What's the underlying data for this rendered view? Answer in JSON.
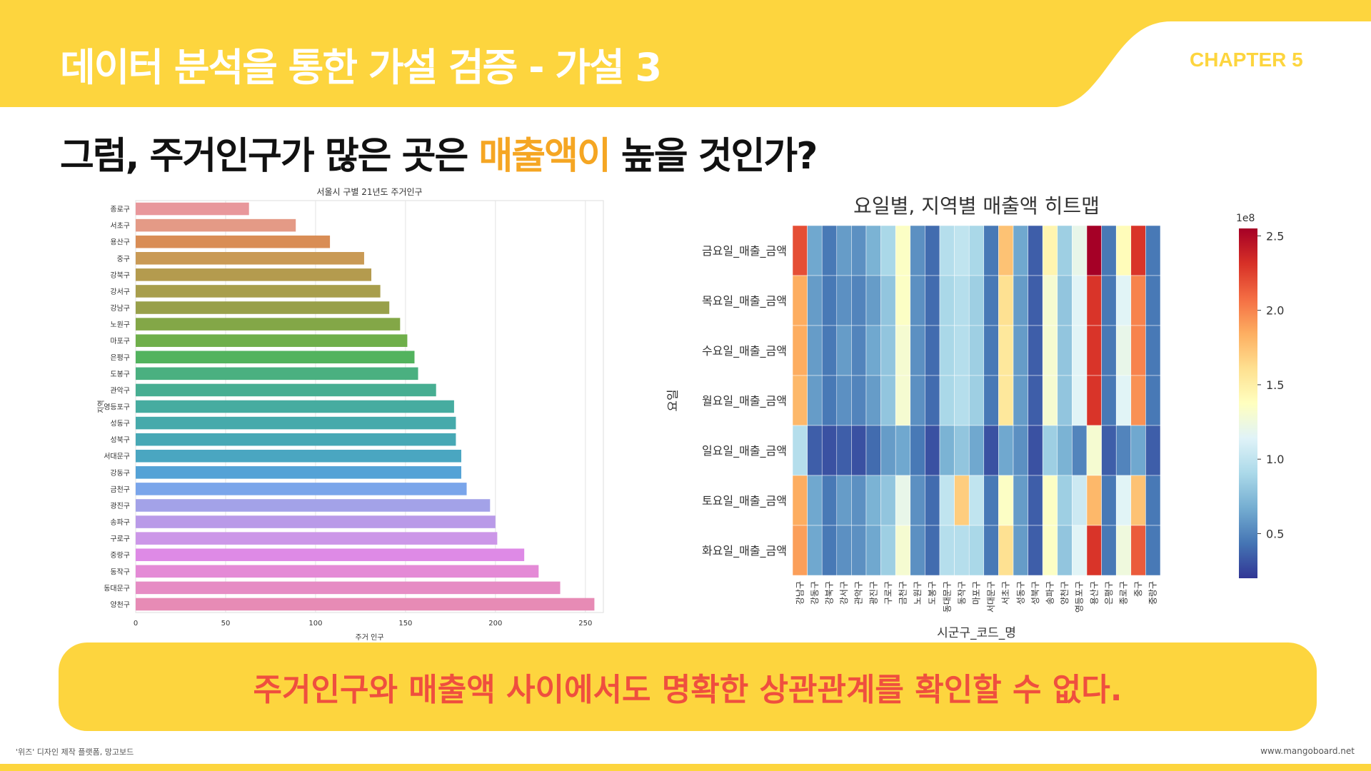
{
  "header": {
    "title": "데이터 분석을 통한 가설 검증 - 가설 3",
    "chapter": "CHAPTER 5",
    "bg_color": "#FDD53E"
  },
  "question": {
    "before": "그럼, 주거인구가 많은 곳은 ",
    "highlight": "매출액이",
    "after": " 높을 것인가?",
    "highlight_color": "#F5A623"
  },
  "conclusion": {
    "text": "주거인구와 매출액 사이에서도 명확한 상관관계를 확인할 수 없다.",
    "text_color": "#EF4F3E"
  },
  "footer": {
    "left": "'위즈' 디자인 제작 플랫폼, 망고보드",
    "right": "www.mangoboard.net"
  },
  "chart_data": [
    {
      "type": "bar",
      "orientation": "horizontal",
      "title": "서울시 구별 21년도 주거인구",
      "xlabel": "주거 인구",
      "ylabel": "지역",
      "xlim": [
        0,
        260
      ],
      "xticks": [
        0,
        50,
        100,
        150,
        200,
        250
      ],
      "grid": true,
      "categories": [
        "종로구",
        "서초구",
        "용산구",
        "중구",
        "강북구",
        "강서구",
        "강남구",
        "노원구",
        "마포구",
        "은평구",
        "도봉구",
        "관악구",
        "영등포구",
        "성동구",
        "성북구",
        "서대문구",
        "강동구",
        "금천구",
        "광진구",
        "송파구",
        "구로구",
        "중랑구",
        "동작구",
        "동대문구",
        "양천구"
      ],
      "values": [
        63,
        89,
        108,
        127,
        131,
        136,
        141,
        147,
        151,
        155,
        157,
        167,
        177,
        178,
        178,
        181,
        181,
        184,
        197,
        200,
        201,
        216,
        224,
        236,
        255
      ]
    },
    {
      "type": "heatmap",
      "title": "요일별, 지역별 매출액 히트맵",
      "xlabel": "시군구_코드_명",
      "ylabel": "요일",
      "colormap": "RdYlBu_r",
      "colorbar": {
        "min": 0.2,
        "max": 2.55,
        "ticks": [
          0.5,
          1.0,
          1.5,
          2.0,
          2.5
        ],
        "multiplier": "1e8"
      },
      "rows": [
        "금요일_매출_금액",
        "목요일_매출_금액",
        "수요일_매출_금액",
        "월요일_매출_금액",
        "일요일_매출_금액",
        "토요일_매출_금액",
        "화요일_매출_금액"
      ],
      "columns": [
        "강남구",
        "강동구",
        "강북구",
        "강서구",
        "관악구",
        "광진구",
        "구로구",
        "금천구",
        "노원구",
        "도봉구",
        "동대문구",
        "동작구",
        "마포구",
        "서대문구",
        "서초구",
        "성동구",
        "성북구",
        "송파구",
        "양천구",
        "영등포구",
        "용산구",
        "은평구",
        "종로구",
        "중구",
        "중랑구"
      ],
      "values": [
        [
          2.2,
          0.65,
          0.45,
          0.6,
          0.55,
          0.7,
          0.9,
          1.35,
          0.55,
          0.4,
          0.95,
          1.0,
          0.9,
          0.45,
          1.75,
          0.65,
          0.35,
          1.45,
          0.85,
          1.2,
          2.55,
          0.45,
          1.4,
          2.3,
          0.45
        ],
        [
          1.85,
          0.6,
          0.45,
          0.55,
          0.5,
          0.6,
          0.8,
          1.35,
          0.55,
          0.4,
          0.9,
          0.95,
          0.85,
          0.45,
          1.6,
          0.6,
          0.35,
          1.3,
          0.8,
          1.15,
          2.3,
          0.45,
          1.15,
          2.0,
          0.45
        ],
        [
          1.85,
          0.6,
          0.45,
          0.6,
          0.5,
          0.65,
          0.8,
          1.3,
          0.55,
          0.4,
          0.9,
          0.95,
          0.85,
          0.45,
          1.55,
          0.6,
          0.35,
          1.3,
          0.8,
          1.15,
          2.3,
          0.45,
          1.2,
          2.0,
          0.45
        ],
        [
          1.8,
          0.6,
          0.45,
          0.55,
          0.5,
          0.6,
          0.8,
          1.3,
          0.55,
          0.4,
          0.9,
          0.95,
          0.85,
          0.45,
          1.55,
          0.6,
          0.35,
          1.3,
          0.8,
          1.15,
          2.3,
          0.45,
          1.15,
          1.95,
          0.45
        ],
        [
          0.95,
          0.35,
          0.3,
          0.35,
          0.3,
          0.4,
          0.6,
          0.65,
          0.45,
          0.3,
          0.7,
          0.8,
          0.65,
          0.3,
          0.65,
          0.55,
          0.3,
          0.85,
          0.7,
          0.5,
          1.3,
          0.35,
          0.5,
          0.65,
          0.35
        ],
        [
          1.85,
          0.65,
          0.45,
          0.6,
          0.55,
          0.7,
          0.8,
          1.2,
          0.55,
          0.4,
          1.0,
          1.7,
          1.0,
          0.45,
          1.35,
          0.6,
          0.35,
          1.35,
          0.85,
          1.05,
          1.8,
          0.45,
          1.15,
          1.75,
          0.45
        ],
        [
          1.9,
          0.65,
          0.45,
          0.55,
          0.55,
          0.65,
          0.85,
          1.3,
          0.55,
          0.4,
          0.95,
          0.95,
          0.9,
          0.45,
          1.6,
          0.6,
          0.35,
          1.35,
          0.8,
          1.15,
          2.3,
          0.45,
          1.25,
          2.15,
          0.45
        ]
      ]
    }
  ]
}
